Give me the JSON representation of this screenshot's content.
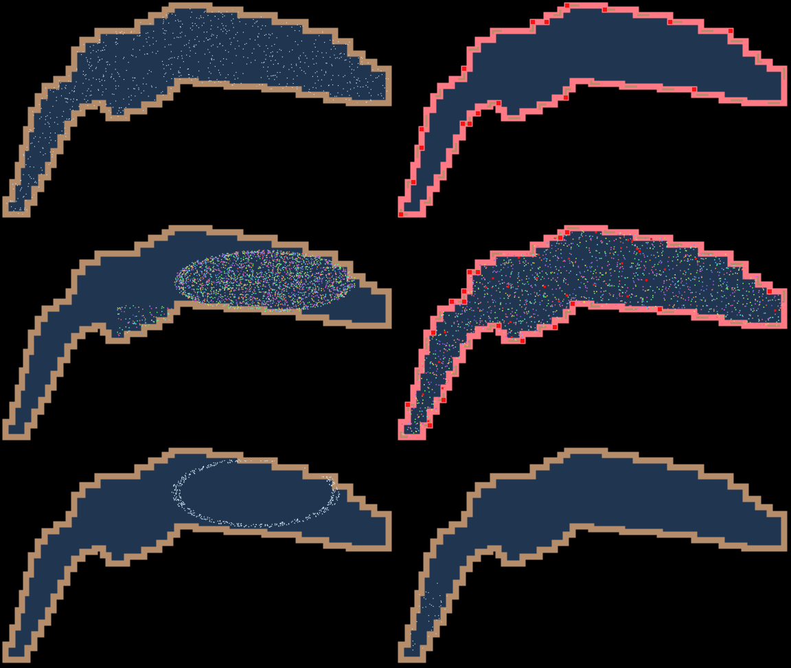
{
  "colors": {
    "background": "#000000",
    "fluid": "#1f3550",
    "wall": "#b58d6b",
    "wall_highlight": "#ff7a85",
    "hot": "#ff1010",
    "particle_light": "#cfe0ee"
  },
  "panels": [
    {
      "id": "top-left",
      "wall": "plain",
      "content": "dense-particle-field"
    },
    {
      "id": "top-right",
      "wall": "highlight",
      "content": "none"
    },
    {
      "id": "middle-left",
      "wall": "plain",
      "content": "colored-swirl"
    },
    {
      "id": "middle-right",
      "wall": "highlight",
      "content": "colored-noise"
    },
    {
      "id": "bottom-left",
      "wall": "plain",
      "content": "particle-ring"
    },
    {
      "id": "bottom-right",
      "wall": "plain",
      "content": "sparse-particles"
    }
  ]
}
